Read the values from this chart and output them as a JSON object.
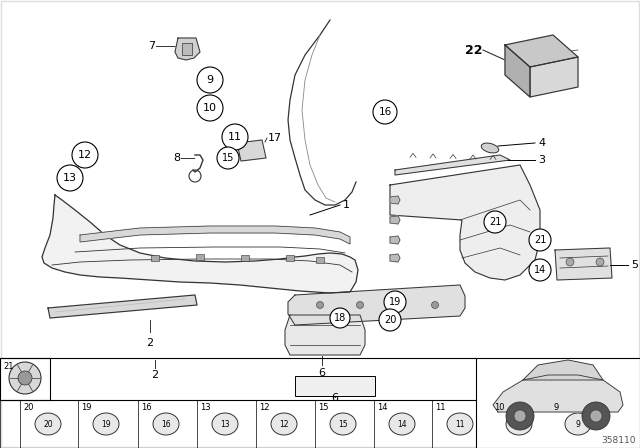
{
  "bg_color": "#ffffff",
  "diagram_number": "358110",
  "line_color": "#333333",
  "light_gray": "#e8e8e8",
  "mid_gray": "#c0c0c0",
  "dark_gray": "#666666"
}
